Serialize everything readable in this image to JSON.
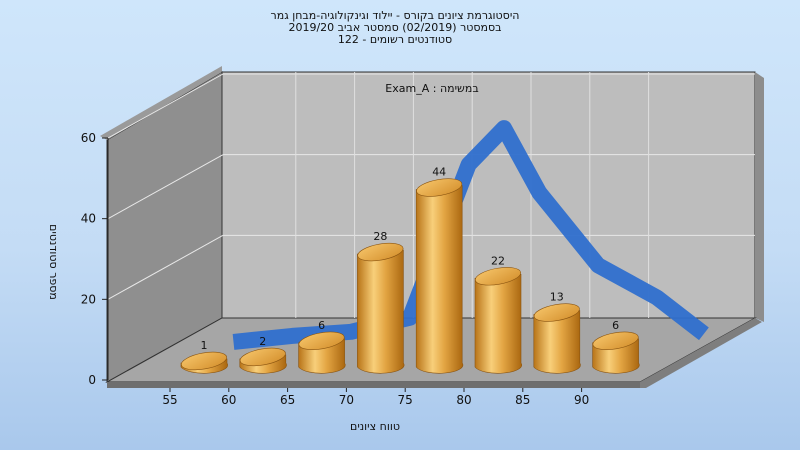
{
  "header": {
    "line1": "היסטוגרמת ציונים בקורס - יילוד וגינקולוגיה-מבחן גמר",
    "line2": "בסמסטר  (02/2019)  סמסטר אביב 2019/20",
    "line3": "סטודנטים רשומים - 122"
  },
  "chart_data": {
    "type": "bar",
    "annotation": "Exam_A : במשימה",
    "xlabel": "טווח ציונים",
    "ylabel": "מספר סטודנטים",
    "x_tick_labels": [
      "55",
      "60",
      "65",
      "70",
      "75",
      "80",
      "85",
      "90"
    ],
    "categories": [
      "55-60",
      "60-65",
      "65-70",
      "70-75",
      "75-80",
      "80-85",
      "85-90",
      "90-95"
    ],
    "values": [
      1,
      2,
      6,
      28,
      44,
      22,
      13,
      6
    ],
    "data_labels": [
      "1",
      "2",
      "6",
      "28",
      "44",
      "22",
      "13",
      "6"
    ],
    "y_ticks": [
      "0",
      "20",
      "40",
      "60"
    ],
    "ylim": [
      0,
      60
    ],
    "grid": true,
    "bar_color": "#e3a543",
    "curve_color": "#2f6fcd",
    "curve": {
      "x": [
        57,
        62,
        67,
        72,
        77,
        80,
        83,
        88,
        93,
        97
      ],
      "y": [
        3,
        4.5,
        5.5,
        9,
        47,
        56,
        40,
        22,
        14,
        5
      ]
    }
  }
}
